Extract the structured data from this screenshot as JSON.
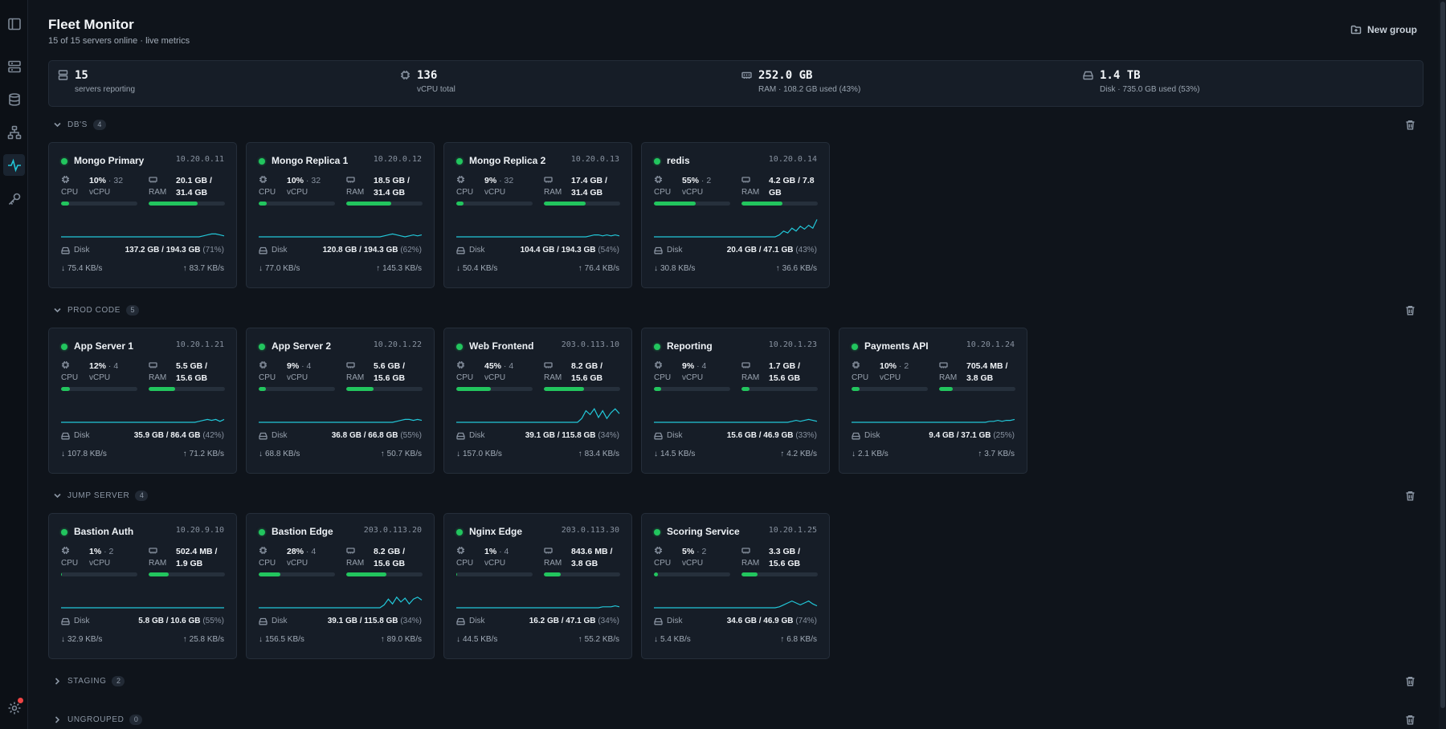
{
  "header": {
    "title": "Fleet Monitor",
    "subtitle": "15 of 15 servers online · live metrics",
    "new_group_label": "New group"
  },
  "summary": [
    {
      "icon": "server-stack-icon",
      "value": "15",
      "label": "servers reporting"
    },
    {
      "icon": "cpu-icon",
      "value": "136",
      "label": "vCPU total"
    },
    {
      "icon": "memory-icon",
      "value": "252.0 GB",
      "label": "RAM · 108.2 GB used (43%)"
    },
    {
      "icon": "disk-icon",
      "value": "1.4 TB",
      "label": "Disk · 735.0 GB used (53%)"
    }
  ],
  "labels": {
    "cpu": "CPU",
    "vcpu": "vCPU",
    "ram": "RAM",
    "disk": "Disk"
  },
  "colors": {
    "accent": "#22c7d8",
    "online": "#22c55e",
    "bar_fill": "#22c55e",
    "alert": "#ef4444"
  },
  "groups": [
    {
      "name": "DB'S",
      "count": "4",
      "expanded": true,
      "servers": [
        {
          "name": "Mongo Primary",
          "ip": "10.20.0.11",
          "cpu_pct": "10%",
          "vcpu": "32",
          "ram_line1": "20.1 GB /",
          "ram_line2": "31.4 GB",
          "cpu_fill": 10,
          "ram_fill": 64,
          "disk_used": "137.2 GB / 194.3 GB",
          "disk_pct": "(71%)",
          "net_down": "75.4 KB/s",
          "net_up": "83.7 KB/s",
          "spark": [
            0,
            0,
            0,
            0,
            0,
            0,
            0,
            0,
            0,
            0,
            0,
            0,
            0,
            0,
            0,
            0,
            0,
            0,
            0,
            0,
            0,
            0,
            0,
            0,
            0,
            0,
            0,
            0,
            0,
            0,
            0,
            0,
            0,
            0,
            1,
            2,
            3,
            3,
            2,
            1
          ]
        },
        {
          "name": "Mongo Replica 1",
          "ip": "10.20.0.12",
          "cpu_pct": "10%",
          "vcpu": "32",
          "ram_line1": "18.5 GB /",
          "ram_line2": "31.4 GB",
          "cpu_fill": 10,
          "ram_fill": 59,
          "disk_used": "120.8 GB / 194.3 GB",
          "disk_pct": "(62%)",
          "net_down": "77.0 KB/s",
          "net_up": "145.3 KB/s",
          "spark": [
            0,
            0,
            0,
            0,
            0,
            0,
            0,
            0,
            0,
            0,
            0,
            0,
            0,
            0,
            0,
            0,
            0,
            0,
            0,
            0,
            0,
            0,
            0,
            0,
            0,
            0,
            0,
            0,
            0,
            0,
            1,
            2,
            3,
            2,
            1,
            0,
            1,
            2,
            1,
            2
          ]
        },
        {
          "name": "Mongo Replica 2",
          "ip": "10.20.0.13",
          "cpu_pct": "9%",
          "vcpu": "32",
          "ram_line1": "17.4 GB /",
          "ram_line2": "31.4 GB",
          "cpu_fill": 9,
          "ram_fill": 55,
          "disk_used": "104.4 GB / 194.3 GB",
          "disk_pct": "(54%)",
          "net_down": "50.4 KB/s",
          "net_up": "76.4 KB/s",
          "spark": [
            0,
            0,
            0,
            0,
            0,
            0,
            0,
            0,
            0,
            0,
            0,
            0,
            0,
            0,
            0,
            0,
            0,
            0,
            0,
            0,
            0,
            0,
            0,
            0,
            0,
            0,
            0,
            0,
            0,
            0,
            0,
            0,
            1,
            2,
            2,
            1,
            2,
            1,
            2,
            1
          ]
        },
        {
          "name": "redis",
          "ip": "10.20.0.14",
          "cpu_pct": "55%",
          "vcpu": "2",
          "ram_line1": "4.2 GB / 7.8",
          "ram_line2": "GB",
          "cpu_fill": 55,
          "ram_fill": 54,
          "disk_used": "20.4 GB / 47.1 GB",
          "disk_pct": "(43%)",
          "net_down": "30.8 KB/s",
          "net_up": "36.6 KB/s",
          "spark": [
            0,
            0,
            0,
            0,
            0,
            0,
            0,
            0,
            0,
            0,
            0,
            0,
            0,
            0,
            0,
            0,
            0,
            0,
            0,
            0,
            0,
            0,
            0,
            0,
            0,
            0,
            0,
            0,
            0,
            0,
            2,
            6,
            4,
            9,
            6,
            11,
            8,
            12,
            9,
            18
          ]
        }
      ]
    },
    {
      "name": "PROD CODE",
      "count": "5",
      "expanded": true,
      "servers": [
        {
          "name": "App Server 1",
          "ip": "10.20.1.21",
          "cpu_pct": "12%",
          "vcpu": "4",
          "ram_line1": "5.5 GB /",
          "ram_line2": "15.6 GB",
          "cpu_fill": 12,
          "ram_fill": 35,
          "disk_used": "35.9 GB / 86.4 GB",
          "disk_pct": "(42%)",
          "net_down": "107.8 KB/s",
          "net_up": "71.2 KB/s",
          "spark": [
            0,
            0,
            0,
            0,
            0,
            0,
            0,
            0,
            0,
            0,
            0,
            0,
            0,
            0,
            0,
            0,
            0,
            0,
            0,
            0,
            0,
            0,
            0,
            0,
            0,
            0,
            0,
            0,
            0,
            0,
            0,
            0,
            0,
            1,
            2,
            3,
            2,
            3,
            1,
            3
          ]
        },
        {
          "name": "App Server 2",
          "ip": "10.20.1.22",
          "cpu_pct": "9%",
          "vcpu": "4",
          "ram_line1": "5.6 GB /",
          "ram_line2": "15.6 GB",
          "cpu_fill": 9,
          "ram_fill": 36,
          "disk_used": "36.8 GB / 66.8 GB",
          "disk_pct": "(55%)",
          "net_down": "68.8 KB/s",
          "net_up": "50.7 KB/s",
          "spark": [
            0,
            0,
            0,
            0,
            0,
            0,
            0,
            0,
            0,
            0,
            0,
            0,
            0,
            0,
            0,
            0,
            0,
            0,
            0,
            0,
            0,
            0,
            0,
            0,
            0,
            0,
            0,
            0,
            0,
            0,
            0,
            0,
            0,
            1,
            2,
            3,
            3,
            2,
            3,
            2
          ]
        },
        {
          "name": "Web Frontend",
          "ip": "203.0.113.10",
          "cpu_pct": "45%",
          "vcpu": "4",
          "ram_line1": "8.2 GB /",
          "ram_line2": "15.6 GB",
          "cpu_fill": 45,
          "ram_fill": 53,
          "disk_used": "39.1 GB / 115.8 GB",
          "disk_pct": "(34%)",
          "net_down": "157.0 KB/s",
          "net_up": "83.4 KB/s",
          "spark": [
            0,
            0,
            0,
            0,
            0,
            0,
            0,
            0,
            0,
            0,
            0,
            0,
            0,
            0,
            0,
            0,
            0,
            0,
            0,
            0,
            0,
            0,
            0,
            0,
            0,
            0,
            0,
            0,
            0,
            0,
            4,
            12,
            8,
            14,
            5,
            12,
            4,
            10,
            14,
            9
          ]
        },
        {
          "name": "Reporting",
          "ip": "10.20.1.23",
          "cpu_pct": "9%",
          "vcpu": "4",
          "ram_line1": "1.7 GB /",
          "ram_line2": "15.6 GB",
          "cpu_fill": 9,
          "ram_fill": 11,
          "disk_used": "15.6 GB / 46.9 GB",
          "disk_pct": "(33%)",
          "net_down": "14.5 KB/s",
          "net_up": "4.2 KB/s",
          "spark": [
            0,
            0,
            0,
            0,
            0,
            0,
            0,
            0,
            0,
            0,
            0,
            0,
            0,
            0,
            0,
            0,
            0,
            0,
            0,
            0,
            0,
            0,
            0,
            0,
            0,
            0,
            0,
            0,
            0,
            0,
            0,
            0,
            0,
            1,
            2,
            1,
            2,
            3,
            2,
            1
          ]
        },
        {
          "name": "Payments API",
          "ip": "10.20.1.24",
          "cpu_pct": "10%",
          "vcpu": "2",
          "ram_line1": "705.4 MB /",
          "ram_line2": "3.8 GB",
          "cpu_fill": 10,
          "ram_fill": 18,
          "disk_used": "9.4 GB / 37.1 GB",
          "disk_pct": "(25%)",
          "net_down": "2.1 KB/s",
          "net_up": "3.7 KB/s",
          "spark": [
            0,
            0,
            0,
            0,
            0,
            0,
            0,
            0,
            0,
            0,
            0,
            0,
            0,
            0,
            0,
            0,
            0,
            0,
            0,
            0,
            0,
            0,
            0,
            0,
            0,
            0,
            0,
            0,
            0,
            0,
            0,
            0,
            0,
            1,
            1,
            2,
            1,
            2,
            2,
            3
          ]
        }
      ]
    },
    {
      "name": "JUMP SERVER",
      "count": "4",
      "expanded": true,
      "servers": [
        {
          "name": "Bastion Auth",
          "ip": "10.20.9.10",
          "cpu_pct": "1%",
          "vcpu": "2",
          "ram_line1": "502.4 MB /",
          "ram_line2": "1.9 GB",
          "cpu_fill": 1,
          "ram_fill": 26,
          "disk_used": "5.8 GB / 10.6 GB",
          "disk_pct": "(55%)",
          "net_down": "32.9 KB/s",
          "net_up": "25.8 KB/s",
          "spark": [
            0,
            0,
            0,
            0,
            0,
            0,
            0,
            0,
            0,
            0,
            0,
            0,
            0,
            0,
            0,
            0,
            0,
            0,
            0,
            0,
            0,
            0,
            0,
            0,
            0,
            0,
            0,
            0,
            0,
            0,
            0,
            0,
            0,
            0,
            0,
            0,
            0,
            0,
            0,
            0
          ]
        },
        {
          "name": "Bastion Edge",
          "ip": "203.0.113.20",
          "cpu_pct": "28%",
          "vcpu": "4",
          "ram_line1": "8.2 GB /",
          "ram_line2": "15.6 GB",
          "cpu_fill": 28,
          "ram_fill": 53,
          "disk_used": "39.1 GB / 115.8 GB",
          "disk_pct": "(34%)",
          "net_down": "156.5 KB/s",
          "net_up": "89.0 KB/s",
          "spark": [
            0,
            0,
            0,
            0,
            0,
            0,
            0,
            0,
            0,
            0,
            0,
            0,
            0,
            0,
            0,
            0,
            0,
            0,
            0,
            0,
            0,
            0,
            0,
            0,
            0,
            0,
            0,
            0,
            0,
            0,
            3,
            9,
            4,
            11,
            6,
            10,
            4,
            9,
            11,
            8
          ]
        },
        {
          "name": "Nginx Edge",
          "ip": "203.0.113.30",
          "cpu_pct": "1%",
          "vcpu": "4",
          "ram_line1": "843.6 MB /",
          "ram_line2": "3.8 GB",
          "cpu_fill": 1,
          "ram_fill": 22,
          "disk_used": "16.2 GB / 47.1 GB",
          "disk_pct": "(34%)",
          "net_down": "44.5 KB/s",
          "net_up": "55.2 KB/s",
          "spark": [
            0,
            0,
            0,
            0,
            0,
            0,
            0,
            0,
            0,
            0,
            0,
            0,
            0,
            0,
            0,
            0,
            0,
            0,
            0,
            0,
            0,
            0,
            0,
            0,
            0,
            0,
            0,
            0,
            0,
            0,
            0,
            0,
            0,
            0,
            0,
            1,
            1,
            1,
            2,
            1
          ]
        },
        {
          "name": "Scoring Service",
          "ip": "10.20.1.25",
          "cpu_pct": "5%",
          "vcpu": "2",
          "ram_line1": "3.3 GB /",
          "ram_line2": "15.6 GB",
          "cpu_fill": 5,
          "ram_fill": 21,
          "disk_used": "34.6 GB / 46.9 GB",
          "disk_pct": "(74%)",
          "net_down": "5.4 KB/s",
          "net_up": "6.8 KB/s",
          "spark": [
            0,
            0,
            0,
            0,
            0,
            0,
            0,
            0,
            0,
            0,
            0,
            0,
            0,
            0,
            0,
            0,
            0,
            0,
            0,
            0,
            0,
            0,
            0,
            0,
            0,
            0,
            0,
            0,
            0,
            0,
            1,
            3,
            5,
            7,
            5,
            3,
            5,
            7,
            4,
            2
          ]
        }
      ]
    },
    {
      "name": "STAGING",
      "count": "2",
      "expanded": false,
      "servers": []
    },
    {
      "name": "UNGROUPED",
      "count": "0",
      "expanded": false,
      "servers": []
    }
  ]
}
